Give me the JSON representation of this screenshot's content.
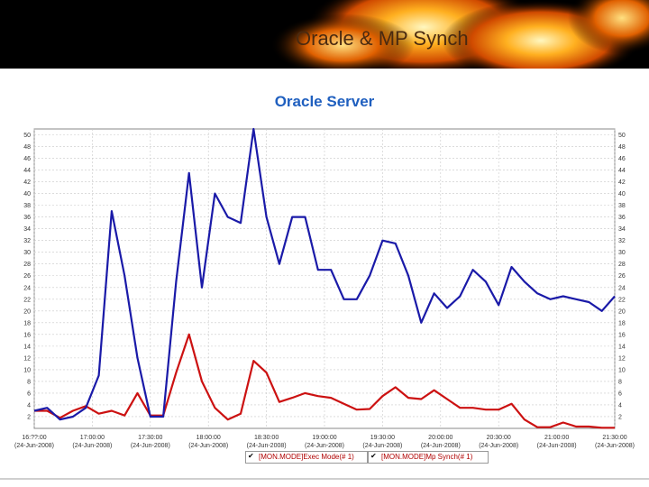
{
  "banner": {
    "title": "Oracle & MP Synch"
  },
  "chart_data": {
    "type": "line",
    "title": "Oracle Server",
    "ylim": [
      0,
      51
    ],
    "y_ticks": [
      2,
      4,
      6,
      8,
      10,
      12,
      14,
      16,
      18,
      20,
      22,
      24,
      26,
      28,
      30,
      32,
      34,
      36,
      38,
      40,
      42,
      44,
      46,
      48,
      50
    ],
    "x_tick_labels": [
      {
        "time": "16:??:00",
        "date": "(24-Jun-2008)"
      },
      {
        "time": "17:00:00",
        "date": "(24-Jun-2008)"
      },
      {
        "time": "17:30:00",
        "date": "(24-Jun-2008)"
      },
      {
        "time": "18:00:00",
        "date": "(24-Jun-2008)"
      },
      {
        "time": "18:30:00",
        "date": "(24-Jun-2008)"
      },
      {
        "time": "19:00:00",
        "date": "(24-Jun-2008)"
      },
      {
        "time": "19:30:00",
        "date": "(24-Jun-2008)"
      },
      {
        "time": "20:00:00",
        "date": "(24-Jun-2008)"
      },
      {
        "time": "20:30:00",
        "date": "(24-Jun-2008)"
      },
      {
        "time": "21:00:00",
        "date": "(24-Jun-2008)"
      },
      {
        "time": "21:30:00",
        "date": "(24-Jun-2008)"
      }
    ],
    "grid": true,
    "series": [
      {
        "name": "[MON.MODE]Exec Mode(# 1)",
        "color": "#cc1111",
        "values": [
          3,
          3,
          1.8,
          3,
          3.8,
          2.5,
          3,
          2.2,
          6,
          2.2,
          2.2,
          9.5,
          16,
          8,
          3.5,
          1.5,
          2.5,
          11.5,
          9.5,
          4.5,
          5.2,
          6,
          5.5,
          5.2,
          4.2,
          3.2,
          3.3,
          5.5,
          7,
          5.2,
          5,
          6.5,
          5,
          3.5,
          3.5,
          3.2,
          3.2,
          4.2,
          1.5,
          0.2,
          0.2,
          1,
          0.3,
          0.3,
          0.1,
          0.1
        ]
      },
      {
        "name": "[MON.MODE]Mp Synch(# 1)",
        "color": "#1a1aa8",
        "values": [
          3,
          3.5,
          1.5,
          2,
          3.5,
          9,
          37,
          26,
          12,
          2,
          2,
          25,
          43.5,
          24,
          40,
          36,
          35,
          51,
          36,
          28,
          36,
          36,
          27,
          27,
          22,
          22,
          26,
          32,
          31.5,
          26,
          18,
          23,
          20.5,
          22.5,
          27,
          25,
          21,
          27.5,
          25,
          23,
          22,
          22.5,
          22,
          21.5,
          20,
          22.5
        ]
      }
    ]
  }
}
